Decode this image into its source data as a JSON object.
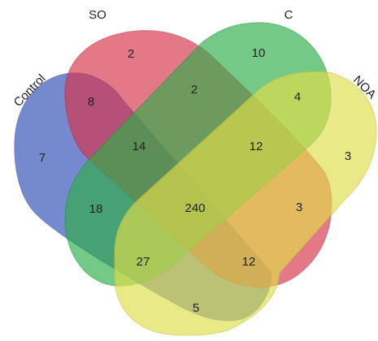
{
  "sets": [
    {
      "id": "control",
      "label": "Control",
      "fill": "#2f4fb5",
      "stroke": "#2a46a3"
    },
    {
      "id": "so",
      "label": "SO",
      "fill": "#d6344a",
      "stroke": "#c2283d"
    },
    {
      "id": "c",
      "label": "C",
      "fill": "#2fae48",
      "stroke": "#239a3a"
    },
    {
      "id": "noa",
      "label": "NOA",
      "fill": "#e0df4a",
      "stroke": "#c9c840"
    }
  ],
  "regions": {
    "control_only": "7",
    "so_only": "2",
    "c_only": "10",
    "noa_only": "3",
    "control_so": "8",
    "so_c": "2",
    "c_noa": "4",
    "control_so_c": "14",
    "so_c_noa": "12",
    "control_c": "18",
    "all_four": "240",
    "so_noa": "3",
    "control_c_noa": "27",
    "control_so_noa": "12",
    "control_noa": "5"
  }
}
